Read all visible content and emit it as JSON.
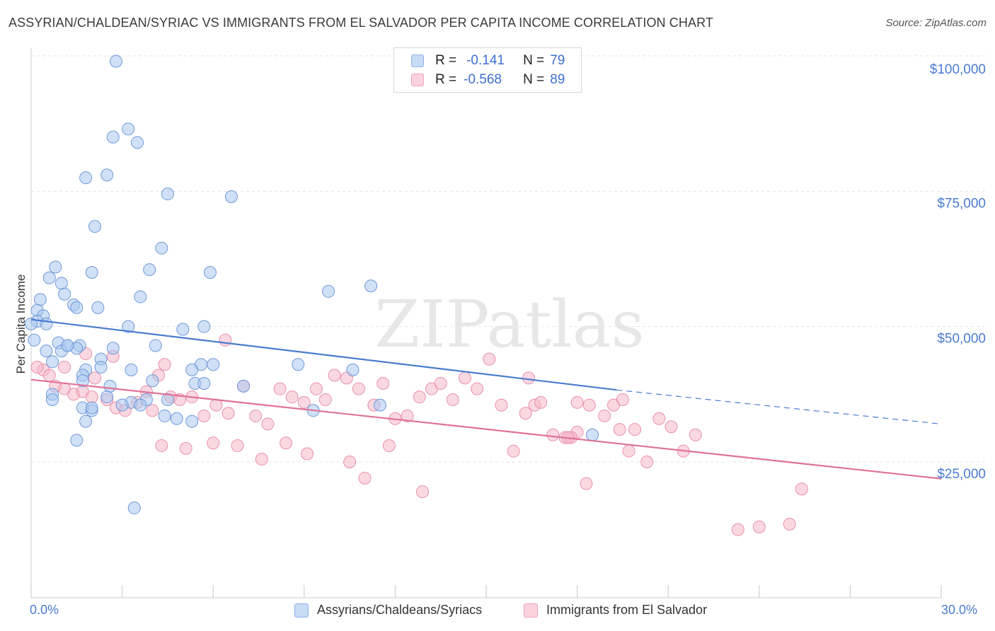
{
  "title": "ASSYRIAN/CHALDEAN/SYRIAC VS IMMIGRANTS FROM EL SALVADOR PER CAPITA INCOME CORRELATION CHART",
  "source": "Source: ZipAtlas.com",
  "watermark": "ZIPatlas",
  "legend_top": {
    "rows": [
      {
        "r_label": "R =",
        "r_value": "-0.141",
        "n_label": "N =",
        "n_value": "79",
        "color": "#a9c8f0"
      },
      {
        "r_label": "R =",
        "r_value": "-0.568",
        "n_label": "N =",
        "n_value": "89",
        "color": "#f5b8cb"
      }
    ]
  },
  "bottom_legend": [
    {
      "label": "Assyrians/Chaldeans/Syriacs",
      "color": "#a9c8f0"
    },
    {
      "label": "Immigrants from El Salvador",
      "color": "#f5b8cb"
    }
  ],
  "chart_data": {
    "type": "scatter",
    "ylabel": "Per Capita Income",
    "xlim": [
      0,
      30
    ],
    "ylim": [
      5000,
      105000
    ],
    "x_tick_labels": [
      "0.0%",
      "30.0%"
    ],
    "y_ticks": [
      25000,
      50000,
      75000,
      100000
    ],
    "y_tick_labels": [
      "$25,000",
      "$50,000",
      "$75,000",
      "$100,000"
    ],
    "grid": "horizontal dashed",
    "colors": {
      "blue": "#4a7bd0",
      "pink": "#e0729a",
      "blue_fill": "#a9c8f0",
      "pink_fill": "#f5b8cb"
    },
    "series": [
      {
        "name": "Assyrians/Chaldeans/Syriacs",
        "trend": {
          "x0": 0,
          "y0": 51300,
          "x1": 19.3,
          "y1": 38300,
          "dash_to_x": 30,
          "dash_to_y": 32000
        },
        "points": [
          [
            2.8,
            99000
          ],
          [
            3.2,
            86500
          ],
          [
            2.7,
            85000
          ],
          [
            3.5,
            84000
          ],
          [
            1.8,
            77500
          ],
          [
            2.5,
            78000
          ],
          [
            4.5,
            74500
          ],
          [
            6.6,
            74000
          ],
          [
            2.1,
            68500
          ],
          [
            4.3,
            64500
          ],
          [
            0.8,
            61000
          ],
          [
            2.0,
            60000
          ],
          [
            3.9,
            60500
          ],
          [
            5.9,
            60000
          ],
          [
            0.6,
            59000
          ],
          [
            1.0,
            58000
          ],
          [
            11.2,
            57500
          ],
          [
            9.8,
            56500
          ],
          [
            1.1,
            56000
          ],
          [
            0.3,
            55000
          ],
          [
            3.6,
            55500
          ],
          [
            1.4,
            54000
          ],
          [
            1.5,
            53500
          ],
          [
            2.2,
            53500
          ],
          [
            0.2,
            53000
          ],
          [
            0.4,
            52000
          ],
          [
            0.2,
            51000
          ],
          [
            0.5,
            50500
          ],
          [
            3.2,
            50000
          ],
          [
            5.0,
            49500
          ],
          [
            5.7,
            50000
          ],
          [
            0.1,
            47500
          ],
          [
            0.9,
            47000
          ],
          [
            1.2,
            46500
          ],
          [
            1.6,
            46500
          ],
          [
            1.5,
            46000
          ],
          [
            4.1,
            46500
          ],
          [
            2.7,
            46000
          ],
          [
            0.5,
            45500
          ],
          [
            1.0,
            45500
          ],
          [
            2.3,
            44000
          ],
          [
            0.7,
            43500
          ],
          [
            5.6,
            43000
          ],
          [
            6.0,
            43000
          ],
          [
            8.8,
            43000
          ],
          [
            2.3,
            42500
          ],
          [
            3.3,
            42000
          ],
          [
            5.3,
            42000
          ],
          [
            10.6,
            42000
          ],
          [
            1.8,
            42000
          ],
          [
            1.7,
            41000
          ],
          [
            4.0,
            40000
          ],
          [
            1.7,
            40000
          ],
          [
            5.4,
            39500
          ],
          [
            5.7,
            39500
          ],
          [
            7.0,
            39000
          ],
          [
            2.6,
            39000
          ],
          [
            0.7,
            37500
          ],
          [
            2.5,
            37000
          ],
          [
            3.8,
            36500
          ],
          [
            4.5,
            36500
          ],
          [
            0.7,
            36500
          ],
          [
            3.3,
            36000
          ],
          [
            3.6,
            35500
          ],
          [
            1.7,
            35000
          ],
          [
            2.0,
            34500
          ],
          [
            9.3,
            34500
          ],
          [
            4.4,
            33500
          ],
          [
            4.8,
            33000
          ],
          [
            1.8,
            32500
          ],
          [
            5.3,
            32500
          ],
          [
            11.5,
            35500
          ],
          [
            18.5,
            30000
          ],
          [
            1.5,
            29000
          ],
          [
            3.4,
            16500
          ],
          [
            2.0,
            35000
          ],
          [
            3.0,
            35500
          ],
          [
            1.2,
            46500
          ],
          [
            0.0,
            50500
          ]
        ]
      },
      {
        "name": "Immigrants from El Salvador",
        "trend": {
          "x0": 0,
          "y0": 40200,
          "x1": 30,
          "y1": 21900
        },
        "points": [
          [
            6.4,
            47500
          ],
          [
            0.4,
            42000
          ],
          [
            0.6,
            41000
          ],
          [
            1.1,
            42500
          ],
          [
            1.8,
            45000
          ],
          [
            2.1,
            40500
          ],
          [
            2.7,
            44500
          ],
          [
            4.4,
            43000
          ],
          [
            4.2,
            41000
          ],
          [
            0.8,
            39000
          ],
          [
            1.1,
            38500
          ],
          [
            1.4,
            37500
          ],
          [
            1.7,
            38000
          ],
          [
            2.0,
            37000
          ],
          [
            2.5,
            36500
          ],
          [
            2.8,
            35000
          ],
          [
            3.1,
            34500
          ],
          [
            3.5,
            36000
          ],
          [
            3.8,
            38000
          ],
          [
            4.0,
            34500
          ],
          [
            4.6,
            37000
          ],
          [
            4.9,
            36500
          ],
          [
            5.3,
            37000
          ],
          [
            5.7,
            33500
          ],
          [
            6.1,
            35500
          ],
          [
            6.5,
            34000
          ],
          [
            7.0,
            39000
          ],
          [
            7.4,
            33500
          ],
          [
            7.8,
            32000
          ],
          [
            8.2,
            38500
          ],
          [
            8.6,
            37000
          ],
          [
            9.0,
            36000
          ],
          [
            9.4,
            38500
          ],
          [
            9.7,
            36500
          ],
          [
            10.0,
            41000
          ],
          [
            10.4,
            40500
          ],
          [
            10.8,
            38500
          ],
          [
            11.3,
            35500
          ],
          [
            11.6,
            39500
          ],
          [
            12.0,
            33000
          ],
          [
            12.4,
            33500
          ],
          [
            12.8,
            37000
          ],
          [
            13.2,
            38500
          ],
          [
            13.5,
            39500
          ],
          [
            13.9,
            36500
          ],
          [
            14.3,
            40500
          ],
          [
            14.7,
            38500
          ],
          [
            15.1,
            44000
          ],
          [
            15.5,
            35500
          ],
          [
            15.9,
            27000
          ],
          [
            16.3,
            34000
          ],
          [
            16.6,
            35500
          ],
          [
            17.2,
            30000
          ],
          [
            17.6,
            29500
          ],
          [
            18.0,
            30500
          ],
          [
            18.4,
            35500
          ],
          [
            18.9,
            33500
          ],
          [
            19.2,
            35500
          ],
          [
            19.5,
            36500
          ],
          [
            19.9,
            31000
          ],
          [
            20.3,
            25000
          ],
          [
            20.7,
            33000
          ],
          [
            21.1,
            31500
          ],
          [
            21.5,
            27000
          ],
          [
            21.9,
            30000
          ],
          [
            4.3,
            28000
          ],
          [
            5.1,
            27500
          ],
          [
            6.0,
            28500
          ],
          [
            6.8,
            28000
          ],
          [
            7.6,
            25500
          ],
          [
            8.4,
            28500
          ],
          [
            9.1,
            26500
          ],
          [
            10.5,
            25000
          ],
          [
            11.0,
            22000
          ],
          [
            11.8,
            28000
          ],
          [
            12.9,
            19500
          ],
          [
            16.4,
            40500
          ],
          [
            17.8,
            29500
          ],
          [
            18.0,
            36000
          ],
          [
            18.3,
            21000
          ],
          [
            16.8,
            36000
          ],
          [
            17.7,
            29500
          ],
          [
            19.4,
            31000
          ],
          [
            19.7,
            27000
          ],
          [
            25.4,
            20000
          ],
          [
            23.3,
            12500
          ],
          [
            24.0,
            13000
          ],
          [
            25.0,
            13500
          ],
          [
            0.2,
            42500
          ]
        ]
      }
    ]
  }
}
